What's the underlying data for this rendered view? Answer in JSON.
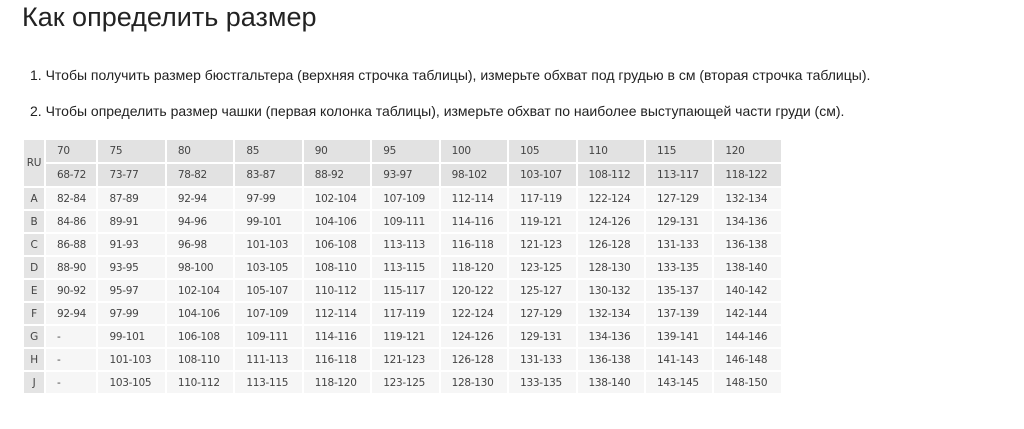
{
  "title": "Как определить размер",
  "instructions": [
    "1. Чтобы получить размер бюстгальтера (верхняя строчка таблицы), измерьте обхват под грудью в см (вторая строчка таблицы).",
    "2. Чтобы определить размер чашки (первая колонка таблицы), измерьте обхват по наиболее выступающей части груди (см)."
  ],
  "table": {
    "corner": "RU",
    "sizes": [
      "70",
      "75",
      "80",
      "85",
      "90",
      "95",
      "100",
      "105",
      "110",
      "115",
      "120"
    ],
    "underbust": [
      "68-72",
      "73-77",
      "78-82",
      "83-87",
      "88-92",
      "93-97",
      "98-102",
      "103-107",
      "108-112",
      "113-117",
      "118-122"
    ],
    "rows": [
      {
        "cup": "A",
        "values": [
          "82-84",
          "87-89",
          "92-94",
          "97-99",
          "102-104",
          "107-109",
          "112-114",
          "117-119",
          "122-124",
          "127-129",
          "132-134"
        ]
      },
      {
        "cup": "B",
        "values": [
          "84-86",
          "89-91",
          "94-96",
          "99-101",
          "104-106",
          "109-111",
          "114-116",
          "119-121",
          "124-126",
          "129-131",
          "134-136"
        ]
      },
      {
        "cup": "C",
        "values": [
          "86-88",
          "91-93",
          "96-98",
          "101-103",
          "106-108",
          "113-113",
          "116-118",
          "121-123",
          "126-128",
          "131-133",
          "136-138"
        ]
      },
      {
        "cup": "D",
        "values": [
          "88-90",
          "93-95",
          "98-100",
          "103-105",
          "108-110",
          "113-115",
          "118-120",
          "123-125",
          "128-130",
          "133-135",
          "138-140"
        ]
      },
      {
        "cup": "E",
        "values": [
          "90-92",
          "95-97",
          "102-104",
          "105-107",
          "110-112",
          "115-117",
          "120-122",
          "125-127",
          "130-132",
          "135-137",
          "140-142"
        ]
      },
      {
        "cup": "F",
        "values": [
          "92-94",
          "97-99",
          "104-106",
          "107-109",
          "112-114",
          "117-119",
          "122-124",
          "127-129",
          "132-134",
          "137-139",
          "142-144"
        ]
      },
      {
        "cup": "G",
        "values": [
          "-",
          "99-101",
          "106-108",
          "109-111",
          "114-116",
          "119-121",
          "124-126",
          "129-131",
          "134-136",
          "139-141",
          "144-146"
        ]
      },
      {
        "cup": "H",
        "values": [
          "-",
          "101-103",
          "108-110",
          "111-113",
          "116-118",
          "121-123",
          "126-128",
          "131-133",
          "136-138",
          "141-143",
          "146-148"
        ]
      },
      {
        "cup": "J",
        "values": [
          "-",
          "103-105",
          "110-112",
          "113-115",
          "118-120",
          "123-125",
          "128-130",
          "133-135",
          "138-140",
          "143-145",
          "148-150"
        ]
      }
    ]
  }
}
